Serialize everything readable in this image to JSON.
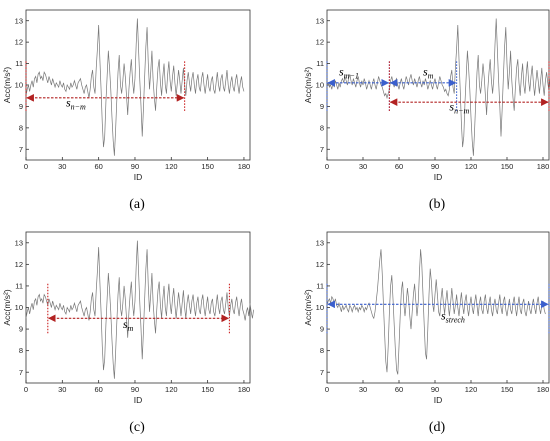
{
  "chart_data": [
    {
      "type": "line",
      "panel": "(a)",
      "caption": "(a)",
      "xlabel": "ID",
      "ylabel": "Acc(m/s²)",
      "xlim": [
        0,
        185
      ],
      "ylim": [
        6.5,
        13.5
      ],
      "xticks": [
        "0",
        "30",
        "60",
        "90",
        "120",
        "150",
        "180"
      ],
      "yticks": [
        "7",
        "8",
        "9",
        "10",
        "11",
        "12",
        "13"
      ],
      "series_color": "#777777",
      "signal": {
        "x_start": 0,
        "values": [
          9.5,
          9.8,
          10.0,
          9.7,
          10.0,
          10.2,
          9.9,
          10.3,
          10.4,
          10.1,
          10.5,
          10.6,
          10.3,
          10.4,
          10.2,
          10.6,
          10.5,
          10.3,
          10.1,
          10.4,
          10.2,
          10.0,
          10.3,
          10.1,
          9.9,
          10.1,
          10.0,
          9.9,
          10.2,
          10.0,
          9.9,
          10.1,
          9.8,
          9.7,
          10.0,
          9.9,
          9.8,
          10.1,
          9.9,
          10.0,
          10.2,
          10.0,
          9.8,
          10.1,
          10.2,
          10.3,
          10.0,
          9.8,
          9.6,
          9.9,
          10.0,
          9.7,
          9.4,
          9.8,
          10.4,
          10.7,
          9.9,
          9.6,
          10.8,
          11.7,
          12.8,
          11.2,
          9.8,
          8.2,
          7.1,
          7.6,
          9.2,
          10.4,
          11.6,
          10.8,
          9.8,
          8.5,
          7.4,
          6.7,
          7.9,
          9.3,
          10.6,
          11.4,
          10.0,
          9.6,
          10.2,
          11.0,
          10.4,
          9.5,
          8.6,
          9.8,
          10.6,
          11.2,
          10.2,
          9.6,
          10.3,
          11.9,
          13.1,
          11.6,
          10.2,
          9.0,
          7.6,
          8.9,
          10.4,
          11.8,
          12.7,
          11.0,
          9.8,
          10.6,
          11.6,
          10.2,
          9.4,
          8.8,
          9.9,
          10.8,
          11.2,
          10.1,
          9.5,
          10.4,
          11.0,
          10.0,
          9.6,
          10.5,
          11.1,
          10.2,
          9.7,
          10.4,
          10.9,
          10.1,
          9.5,
          10.1,
          10.7,
          10.2,
          9.6,
          10.2,
          10.8,
          10.0,
          9.5,
          10.2,
          10.6,
          10.1,
          9.7,
          10.3,
          10.6,
          10.0,
          9.6,
          10.2,
          10.5,
          9.9,
          9.7,
          10.3,
          10.6,
          10.0,
          9.6,
          10.1,
          10.5,
          9.9,
          9.7,
          10.2,
          10.4,
          9.8,
          9.6,
          10.1,
          10.6,
          10.0,
          9.7,
          10.3,
          10.5,
          9.9,
          9.7,
          10.2,
          10.7,
          10.0,
          9.6,
          10.1,
          10.4,
          9.9,
          9.7,
          10.2,
          10.5,
          10.0,
          9.6,
          10.1,
          10.4,
          9.9,
          9.7
        ]
      },
      "segments": [
        {
          "label_main": "s",
          "label_sub": "n−m",
          "from": 0,
          "to": 131,
          "y": 9.4,
          "color": "#b22222",
          "label_x": 33,
          "label_y": 9.0
        }
      ],
      "boundary_lines": [
        {
          "x": 0,
          "color": "#cc2222"
        },
        {
          "x": 131,
          "color": "#cc2222"
        }
      ]
    },
    {
      "type": "line",
      "panel": "(b)",
      "caption": "(b)",
      "xlabel": "ID",
      "ylabel": "Acc(m/s²)",
      "xlim": [
        0,
        185
      ],
      "ylim": [
        6.5,
        13.5
      ],
      "xticks": [
        "0",
        "30",
        "60",
        "90",
        "120",
        "150",
        "180"
      ],
      "yticks": [
        "7",
        "8",
        "9",
        "10",
        "11",
        "12",
        "13"
      ],
      "series_color": "#777777",
      "signal": {
        "x_start": 0,
        "values": [
          10.0,
          10.1,
          9.9,
          10.0,
          9.8,
          10.1,
          9.9,
          10.2,
          10.0,
          9.8,
          10.1,
          9.9,
          10.2,
          10.3,
          10.1,
          10.4,
          10.2,
          10.0,
          10.3,
          10.5,
          10.2,
          10.0,
          10.3,
          10.1,
          9.9,
          10.2,
          10.4,
          10.1,
          9.9,
          10.2,
          10.0,
          10.3,
          10.1,
          9.8,
          10.0,
          10.2,
          10.0,
          9.8,
          10.1,
          10.3,
          10.0,
          9.8,
          10.1,
          10.4,
          10.2,
          10.0,
          9.9,
          9.7,
          9.5,
          9.6,
          9.4,
          9.6,
          9.8,
          10.2,
          10.4,
          10.1,
          9.9,
          10.2,
          10.3,
          10.0,
          9.8,
          10.1,
          10.3,
          10.0,
          9.8,
          10.1,
          10.4,
          10.2,
          10.0,
          10.3,
          10.5,
          10.2,
          10.0,
          10.3,
          10.1,
          9.9,
          10.2,
          10.4,
          10.1,
          9.9,
          10.2,
          10.0,
          10.3,
          10.1,
          9.8,
          10.0,
          10.2,
          10.0,
          9.8,
          10.1,
          10.3,
          10.0,
          9.8,
          10.1,
          10.4,
          10.2,
          10.0,
          9.9,
          9.7,
          9.8,
          9.6,
          9.5,
          9.8,
          10.4,
          10.7,
          9.9,
          9.6,
          10.8,
          11.7,
          12.8,
          11.2,
          9.8,
          8.2,
          7.1,
          7.6,
          9.2,
          10.4,
          11.6,
          10.8,
          9.8,
          8.5,
          7.4,
          6.7,
          7.9,
          9.3,
          10.6,
          11.4,
          10.0,
          9.6,
          10.2,
          11.0,
          10.4,
          9.5,
          8.6,
          9.8,
          10.6,
          11.2,
          10.2,
          9.6,
          10.3,
          11.9,
          13.1,
          11.6,
          10.2,
          9.0,
          7.6,
          8.9,
          10.4,
          11.8,
          12.7,
          11.0,
          9.8,
          10.6,
          11.6,
          10.2,
          9.4,
          8.8,
          9.9,
          10.8,
          11.2,
          10.1,
          9.5,
          10.4,
          11.0,
          10.0,
          9.6,
          10.5,
          11.1,
          10.2,
          9.7,
          10.4,
          10.9,
          10.1,
          9.5,
          10.1,
          10.7,
          10.2,
          9.6,
          10.2,
          10.8,
          10.0,
          9.5,
          10.2,
          10.6,
          10.1,
          9.7,
          10.3,
          10.6,
          10.0,
          9.6,
          10.2,
          10.5,
          9.9,
          9.7,
          10.3
        ]
      },
      "segments": [
        {
          "label_main": "s",
          "label_sub": "m−1",
          "from": 0,
          "to": 52,
          "y": 10.1,
          "color": "#3a5fcd",
          "label_x": 10,
          "label_y": 10.45
        },
        {
          "label_main": "s",
          "label_sub": "m",
          "from": 52,
          "to": 108,
          "y": 10.1,
          "color": "#3a5fcd",
          "label_x": 80,
          "label_y": 10.45
        },
        {
          "label_main": "s",
          "label_sub": "n−m",
          "from": 52,
          "to": 185,
          "y": 9.2,
          "color": "#b22222",
          "label_x": 102,
          "label_y": 8.8
        }
      ],
      "boundary_lines": [
        {
          "x": 0,
          "color": "#3a5fcd"
        },
        {
          "x": 52,
          "color": "#3a5fcd"
        },
        {
          "x": 52,
          "color": "#cc2222"
        },
        {
          "x": 108,
          "color": "#3a5fcd"
        },
        {
          "x": 185,
          "color": "#cc2222"
        }
      ]
    },
    {
      "type": "line",
      "panel": "(c)",
      "caption": "(c)",
      "xlabel": "ID",
      "ylabel": "Acc(m/s²)",
      "xlim": [
        0,
        185
      ],
      "ylim": [
        6.5,
        13.5
      ],
      "xticks": [
        "0",
        "30",
        "60",
        "90",
        "120",
        "150",
        "180"
      ],
      "yticks": [
        "7",
        "8",
        "9",
        "10",
        "11",
        "12",
        "13"
      ],
      "series_color": "#777777",
      "signal": {
        "x_start": 0,
        "values": [
          9.5,
          9.8,
          10.0,
          9.7,
          10.0,
          10.2,
          9.9,
          10.3,
          10.4,
          10.1,
          10.5,
          10.6,
          10.3,
          10.4,
          10.2,
          10.6,
          10.5,
          10.3,
          10.1,
          10.4,
          10.2,
          10.0,
          10.3,
          10.1,
          9.9,
          10.1,
          10.0,
          9.9,
          10.2,
          10.0,
          9.9,
          10.1,
          9.8,
          9.7,
          10.0,
          9.9,
          9.8,
          10.1,
          9.9,
          10.0,
          10.2,
          10.0,
          9.8,
          10.1,
          10.2,
          10.3,
          10.0,
          9.8,
          9.6,
          9.9,
          10.0,
          9.7,
          9.4,
          9.8,
          10.4,
          10.7,
          9.9,
          9.6,
          10.8,
          11.7,
          12.8,
          11.2,
          9.8,
          8.2,
          7.1,
          7.6,
          9.2,
          10.4,
          11.6,
          10.8,
          9.8,
          8.5,
          7.4,
          6.7,
          7.9,
          9.3,
          10.6,
          11.4,
          10.0,
          9.6,
          10.2,
          11.0,
          10.4,
          9.5,
          8.6,
          9.8,
          10.6,
          11.2,
          10.2,
          9.6,
          10.3,
          11.9,
          13.1,
          11.6,
          10.2,
          9.0,
          7.6,
          8.9,
          10.4,
          11.8,
          12.7,
          11.0,
          9.8,
          10.6,
          11.6,
          10.2,
          9.4,
          8.8,
          9.9,
          10.8,
          11.2,
          10.1,
          9.5,
          10.4,
          11.0,
          10.0,
          9.6,
          10.5,
          11.1,
          10.2,
          9.7,
          10.4,
          10.9,
          10.1,
          9.5,
          10.1,
          10.7,
          10.2,
          9.6,
          10.2,
          10.8,
          10.0,
          9.5,
          10.2,
          10.6,
          10.1,
          9.7,
          10.3,
          10.6,
          10.0,
          9.6,
          10.2,
          10.5,
          9.9,
          9.7,
          10.3,
          10.6,
          10.0,
          9.6,
          10.1,
          10.5,
          9.9,
          9.7,
          10.2,
          10.4,
          9.8,
          9.6,
          10.1,
          10.6,
          10.0,
          9.7,
          10.3,
          10.5,
          9.9,
          9.7,
          10.2,
          10.7,
          10.0,
          9.6,
          10.1,
          10.4,
          9.9,
          9.7,
          10.2,
          10.5,
          10.0,
          9.6,
          10.1,
          10.4,
          9.9,
          9.7,
          9.4,
          9.8,
          10.0,
          9.6,
          10.2,
          9.8,
          9.5,
          9.9
        ]
      },
      "segments": [
        {
          "label_main": "s",
          "label_sub": "m",
          "from": 18,
          "to": 168,
          "y": 9.5,
          "color": "#b22222",
          "label_x": 80,
          "label_y": 9.05
        }
      ],
      "boundary_lines": [
        {
          "x": 18,
          "color": "#cc2222"
        },
        {
          "x": 168,
          "color": "#cc2222"
        }
      ]
    },
    {
      "type": "line",
      "panel": "(d)",
      "caption": "(d)",
      "xlabel": "ID",
      "ylabel": "Acc(m/s²)",
      "xlim": [
        0,
        185
      ],
      "ylim": [
        6.5,
        13.5
      ],
      "xticks": [
        "0",
        "30",
        "60",
        "90",
        "120",
        "150",
        "180"
      ],
      "yticks": [
        "7",
        "8",
        "9",
        "10",
        "11",
        "12",
        "13"
      ],
      "series_color": "#777777",
      "signal": {
        "x_start": 0,
        "values": [
          10.1,
          10.3,
          10.4,
          10.2,
          10.5,
          10.4,
          10.2,
          10.4,
          10.1,
          10.0,
          10.2,
          10.0,
          9.8,
          10.1,
          9.9,
          10.0,
          10.1,
          9.9,
          9.8,
          10.1,
          10.0,
          9.8,
          10.0,
          10.1,
          9.9,
          10.0,
          9.8,
          10.0,
          9.9,
          10.1,
          10.0,
          9.8,
          10.0,
          9.9,
          10.1,
          10.2,
          10.0,
          9.8,
          9.6,
          9.5,
          9.8,
          10.3,
          10.8,
          11.5,
          12.2,
          12.7,
          11.6,
          10.2,
          8.8,
          7.5,
          7.0,
          8.2,
          9.8,
          11.0,
          11.5,
          10.4,
          9.2,
          8.0,
          7.1,
          6.9,
          8.2,
          9.6,
          10.8,
          11.2,
          10.2,
          9.6,
          10.2,
          10.9,
          10.4,
          9.6,
          9.0,
          9.8,
          10.6,
          11.1,
          10.3,
          9.6,
          10.2,
          11.6,
          12.7,
          12.0,
          10.6,
          9.2,
          7.9,
          7.6,
          9.0,
          10.6,
          11.8,
          11.2,
          10.2,
          9.8,
          10.6,
          11.3,
          10.6,
          9.8,
          9.6,
          10.4,
          10.9,
          10.2,
          9.7,
          10.3,
          10.8,
          10.1,
          9.6,
          10.2,
          10.9,
          10.3,
          9.7,
          10.1,
          10.6,
          10.0,
          9.6,
          10.2,
          10.7,
          10.1,
          9.7,
          10.3,
          10.6,
          10.0,
          9.6,
          10.1,
          10.5,
          10.0,
          9.7,
          10.2,
          10.6,
          10.1,
          9.6,
          10.2,
          10.5,
          9.9,
          9.7,
          10.3,
          10.6,
          10.0,
          9.7,
          10.2,
          10.5,
          9.9,
          9.6,
          10.1,
          10.4,
          9.9,
          9.7,
          10.2,
          10.6,
          10.0,
          9.7,
          10.3,
          10.5,
          9.9,
          9.6,
          10.0,
          10.4,
          9.9,
          9.7,
          10.2,
          10.5,
          10.0,
          9.6,
          10.1,
          10.5,
          9.9,
          9.7,
          10.2,
          10.4,
          9.8,
          9.6,
          10.0,
          10.3,
          9.9,
          9.7,
          10.1,
          10.4,
          10.0,
          9.7,
          10.2,
          10.5,
          10.0,
          9.7,
          10.1,
          10.3,
          9.9,
          9.7
        ]
      },
      "segments": [
        {
          "label_main": "s",
          "label_sub": "strech",
          "from": 0,
          "to": 185,
          "y": 10.15,
          "color": "#3a5fcd",
          "label_x": 95,
          "label_y": 9.45
        }
      ],
      "boundary_lines": [
        {
          "x": 0,
          "color": "#3a5fcd"
        },
        {
          "x": 185,
          "color": "#3a5fcd"
        }
      ]
    }
  ]
}
